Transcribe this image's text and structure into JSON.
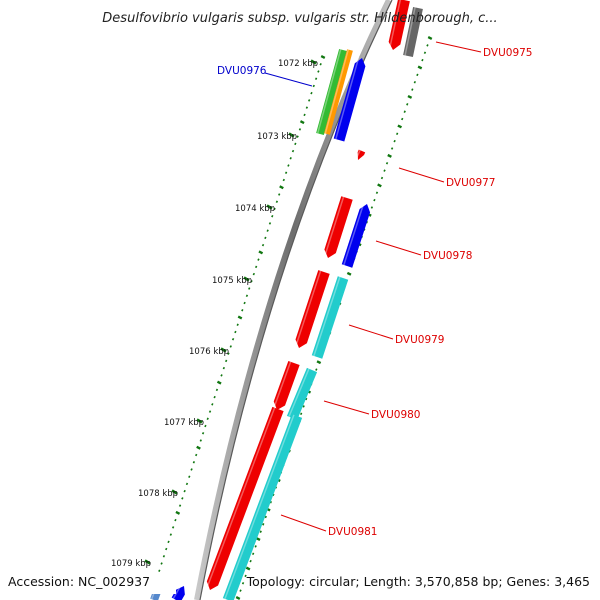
{
  "title": "Desulfovibrio vulgaris subsp. vulgaris str. Hildenborough, c...",
  "footer": {
    "accession": "Accession: NC_002937",
    "summary": "Topology: circular; Length: 3,570,858 bp; Genes: 3,465"
  },
  "scale_labels": [
    "1072 kbp",
    "1073 kbp",
    "1074 kbp",
    "1075 kbp",
    "1076 kbp",
    "1077 kbp",
    "1078 kbp",
    "1079 kbp"
  ],
  "gene_labels": [
    {
      "name": "DVU0975",
      "color": "#dd0000"
    },
    {
      "name": "DVU0976",
      "color": "#0000cc"
    },
    {
      "name": "DVU0977",
      "color": "#dd0000"
    },
    {
      "name": "DVU0978",
      "color": "#dd0000"
    },
    {
      "name": "DVU0979",
      "color": "#dd0000"
    },
    {
      "name": "DVU0980",
      "color": "#dd0000"
    },
    {
      "name": "DVU0981",
      "color": "#dd0000"
    }
  ],
  "colors": {
    "gene_red": "#ee0000",
    "gene_blue": "#0000ee",
    "gene_cyan": "#22cccc",
    "gene_green": "#33bb33",
    "gene_orange": "#ff9900",
    "gene_gray": "#666666",
    "tick_green": "#117711",
    "backbone": "#8a8a8a"
  }
}
